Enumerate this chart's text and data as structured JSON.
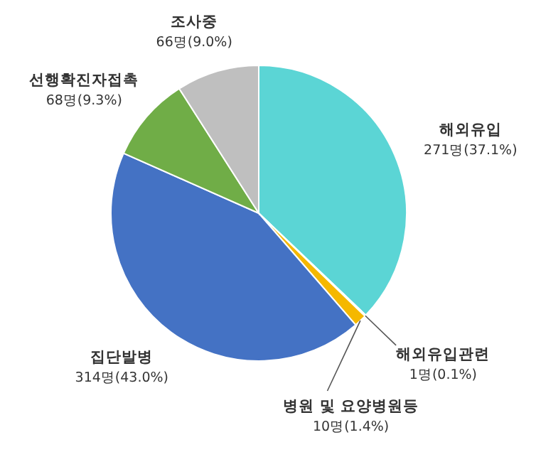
{
  "chart_data": {
    "type": "pie",
    "categories": [
      "해외유입",
      "해외유입관련",
      "병원 및 요양병원등",
      "집단발병",
      "선행확진자접촉",
      "조사중"
    ],
    "values": [
      271,
      1,
      10,
      314,
      68,
      66
    ],
    "colors": [
      "#5bd5d5",
      "#ed7d31",
      "#f5b800",
      "#4472c4",
      "#70ad47",
      "#bfbfbf"
    ],
    "value_labels": [
      "271명(37.1%)",
      "1명(0.1%)",
      "10명(1.4%)",
      "314명(43.0%)",
      "68명(9.3%)",
      "66명(9.0%)"
    ]
  }
}
